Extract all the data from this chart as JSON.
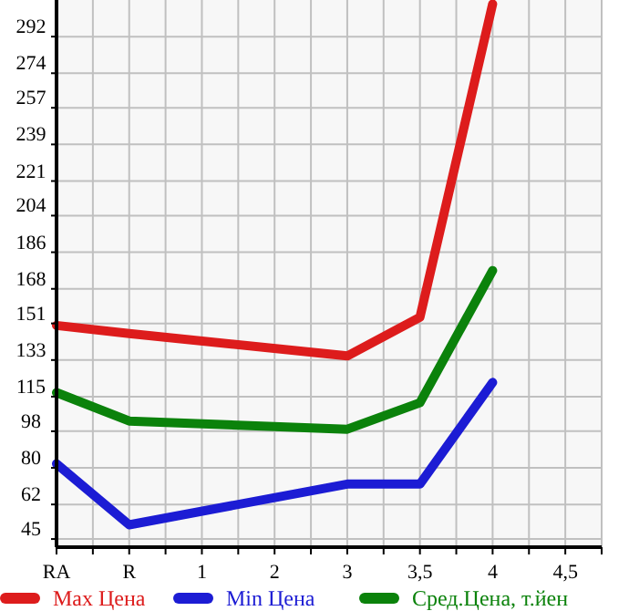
{
  "chart_data": {
    "type": "line",
    "categories": [
      "RA",
      "R",
      "1",
      "2",
      "3",
      "3,5",
      "4",
      "4,5"
    ],
    "series": [
      {
        "name": "Max Цена",
        "color": "#dd1c1c",
        "values": [
          150,
          146,
          null,
          null,
          135,
          154,
          308,
          null
        ]
      },
      {
        "name": "Min Цена",
        "color": "#1c1cd4",
        "values": [
          82,
          52,
          null,
          null,
          72,
          72,
          122,
          null
        ]
      },
      {
        "name": "Сред.Цена, т.йен",
        "color": "#0b820b",
        "values": [
          117,
          103,
          null,
          null,
          99,
          112,
          177,
          null
        ]
      }
    ],
    "ylim": [
      41,
      310
    ],
    "yticks": [
      45,
      62,
      80,
      98,
      115,
      133,
      151,
      168,
      186,
      204,
      221,
      239,
      257,
      274,
      292
    ],
    "grid": true,
    "legend": "bottom",
    "marker": "none",
    "line_style": "solid"
  }
}
